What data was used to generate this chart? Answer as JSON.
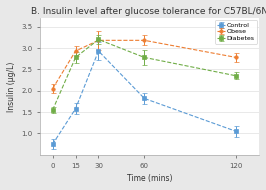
{
  "title": "B. Insulin level after glucose tolerance for C57BL/6N",
  "xlabel": "Time (mins)",
  "ylabel": "Insulin (µg/L)",
  "x": [
    0,
    15,
    30,
    60,
    120
  ],
  "series": {
    "Control": {
      "y": [
        0.75,
        1.58,
        2.93,
        1.82,
        1.05
      ],
      "yerr": [
        0.12,
        0.13,
        0.2,
        0.12,
        0.13
      ],
      "color": "#5b9bd5",
      "marker": "s"
    },
    "Obese": {
      "y": [
        2.05,
        2.93,
        3.18,
        3.18,
        2.78
      ],
      "yerr": [
        0.1,
        0.12,
        0.22,
        0.12,
        0.1
      ],
      "color": "#ed7d31",
      "marker": "o"
    },
    "Diabetes": {
      "y": [
        1.55,
        2.78,
        3.2,
        2.78,
        2.35
      ],
      "yerr": [
        0.07,
        0.12,
        0.1,
        0.18,
        0.08
      ],
      "color": "#70ad47",
      "marker": "s"
    }
  },
  "ylim": [
    0.5,
    3.7
  ],
  "yticks": [
    1.0,
    1.5,
    2.0,
    2.5,
    3.0,
    3.5
  ],
  "xticks": [
    0,
    15,
    30,
    60,
    120
  ],
  "plot_bg": "#ffffff",
  "fig_bg": "#e8e8e8",
  "title_fontsize": 6.5,
  "label_fontsize": 5.5,
  "tick_fontsize": 5,
  "legend_fontsize": 4.5
}
